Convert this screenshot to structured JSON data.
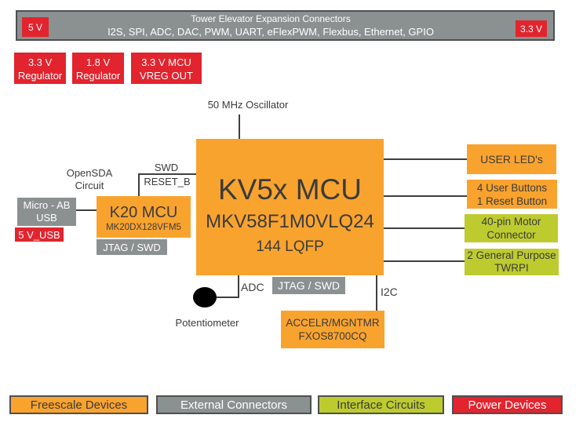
{
  "colors": {
    "orange": "#F9A32F",
    "red": "#E2242E",
    "gray": "#8B9091",
    "green": "#BDCB2F",
    "border": "#4E4F51",
    "line": "#3F3F3F",
    "text_dark": "#3B3B3A"
  },
  "top_bar": {
    "title": "Tower Elevator Expansion Connectors",
    "subtitle": "I2S, SPI, ADC, DAC, PWM, UART, eFlexPWM, Flexbus, Ethernet, GPIO",
    "left_badge": "5 V",
    "right_badge": "3.3 V"
  },
  "regulators": [
    {
      "line1": "3.3 V",
      "line2": "Regulator"
    },
    {
      "line1": "1.8 V",
      "line2": "Regulator"
    },
    {
      "line1": "3.3 V MCU",
      "line2": "VREG OUT"
    }
  ],
  "oscillator_label": "50 MHz Oscillator",
  "mcu": {
    "title": "KV5x MCU",
    "part_number": "MKV58F1M0VLQ24",
    "package": "144 LQFP"
  },
  "left_cluster": {
    "opensda": {
      "line1": "OpenSDA",
      "line2": "Circuit"
    },
    "swd_label": "SWD",
    "reset_label": "RESET_B",
    "usb": {
      "line1": "Micro - AB",
      "line2": "USB"
    },
    "usb_power": "5 V_USB",
    "k20": {
      "title": "K20 MCU",
      "part_number": "MK20DX128VFM5"
    },
    "jtag": "JTAG / SWD"
  },
  "right_boxes": [
    {
      "line1": "USER LED's",
      "line2": ""
    },
    {
      "line1": "4 User Buttons",
      "line2": "1 Reset Button"
    },
    {
      "line1": "40-pin Motor",
      "line2": "Connector"
    },
    {
      "line1": "2 General Purpose",
      "line2": "TWRPI"
    }
  ],
  "bottom_cluster": {
    "adc_label": "ADC",
    "potentiometer_label": "Potentiometer",
    "jtag": "JTAG / SWD",
    "i2c_label": "I2C",
    "accel": {
      "line1": "ACCELR/MGNTMR",
      "line2": "FXOS8700CQ"
    }
  },
  "legend": [
    {
      "label": "Freescale Devices"
    },
    {
      "label": "External Connectors"
    },
    {
      "label": "Interface Circuits"
    },
    {
      "label": "Power Devices"
    }
  ]
}
